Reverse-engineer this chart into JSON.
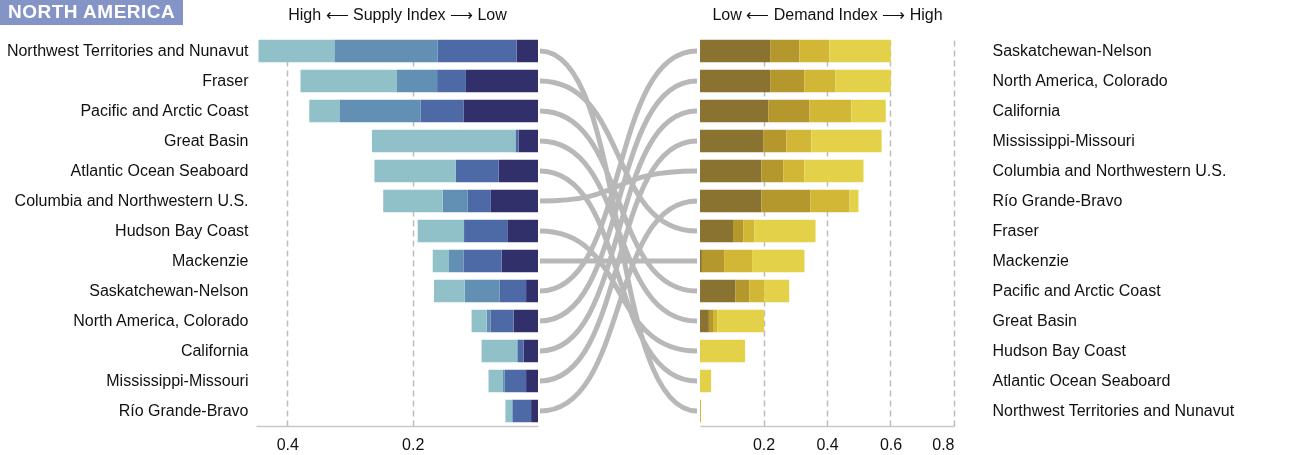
{
  "chart_data": [
    {
      "type": "bar",
      "title": "NORTH AMERICA",
      "xlabel": "High ⟵ Supply Index ⟶ Low",
      "orientation": "horizontal",
      "stacked": true,
      "grid": "x",
      "categories": [
        "Northwest Territories and Nunavut",
        "Fraser",
        "Pacific and Arctic Coast",
        "Great Basin",
        "Atlantic Ocean Seaboard",
        "Columbia and Northwestern U.S.",
        "Hudson Bay Coast",
        "Mackenzie",
        "Saskatchewan-Nelson",
        "North America, Colorado",
        "California",
        "Mississippi-Missouri",
        "Río Grande-Bravo"
      ],
      "series": [
        {
          "color": "#31306a",
          "values": [
            0.034,
            0.115,
            0.119,
            0.031,
            0.063,
            0.076,
            0.049,
            0.058,
            0.019,
            0.039,
            0.023,
            0.019,
            0.011
          ]
        },
        {
          "color": "#4d6aa6",
          "values": [
            0.126,
            0.046,
            0.068,
            0.005,
            0.068,
            0.036,
            0.069,
            0.061,
            0.042,
            0.037,
            0.01,
            0.034,
            0.03
          ]
        },
        {
          "color": "#6190b4",
          "values": [
            0.165,
            0.065,
            0.13,
            0,
            0,
            0.04,
            0,
            0.023,
            0.056,
            0.006,
            0,
            0.003,
            0
          ]
        },
        {
          "color": "#91c1c8",
          "values": [
            0.121,
            0.153,
            0.048,
            0.229,
            0.13,
            0.095,
            0.074,
            0.026,
            0.049,
            0.024,
            0.057,
            0.023,
            0.011
          ]
        }
      ],
      "xlim": [
        0.45,
        0
      ],
      "xticks": [
        0.4,
        0.2
      ]
    },
    {
      "type": "bar",
      "xlabel": "Low ⟵ Demand Index ⟶ High",
      "orientation": "horizontal",
      "stacked": true,
      "grid": "x",
      "categories": [
        "Saskatchewan-Nelson",
        "North America, Colorado",
        "California",
        "Mississippi-Missouri",
        "Columbia and Northwestern U.S.",
        "Río Grande-Bravo",
        "Fraser",
        "Mackenzie",
        "Pacific and Arctic Coast",
        "Great Basin",
        "Hudson Bay Coast",
        "Atlantic Ocean Seaboard",
        "Northwest Territories and Nunavut"
      ],
      "series": [
        {
          "color": "#8a7230",
          "values": [
            0.221,
            0.221,
            0.215,
            0.199,
            0.193,
            0.193,
            0.104,
            0.006,
            0.111,
            0.028,
            0,
            0,
            0
          ]
        },
        {
          "color": "#b5982d",
          "values": [
            0.092,
            0.108,
            0.13,
            0.073,
            0.069,
            0.155,
            0.032,
            0.07,
            0.044,
            0.013,
            0,
            0,
            0
          ]
        },
        {
          "color": "#d2b737",
          "values": [
            0.095,
            0.098,
            0.132,
            0.079,
            0.067,
            0.123,
            0.035,
            0.088,
            0.047,
            0.013,
            0,
            0,
            0.003
          ]
        },
        {
          "color": "#e3d249",
          "values": [
            0.193,
            0.174,
            0.108,
            0.221,
            0.186,
            0.028,
            0.193,
            0.165,
            0.079,
            0.148,
            0.142,
            0.035,
            0
          ]
        }
      ],
      "xlim": [
        0,
        0.8
      ],
      "xticks": [
        0.2,
        0.4,
        0.6,
        0.8
      ]
    }
  ]
}
